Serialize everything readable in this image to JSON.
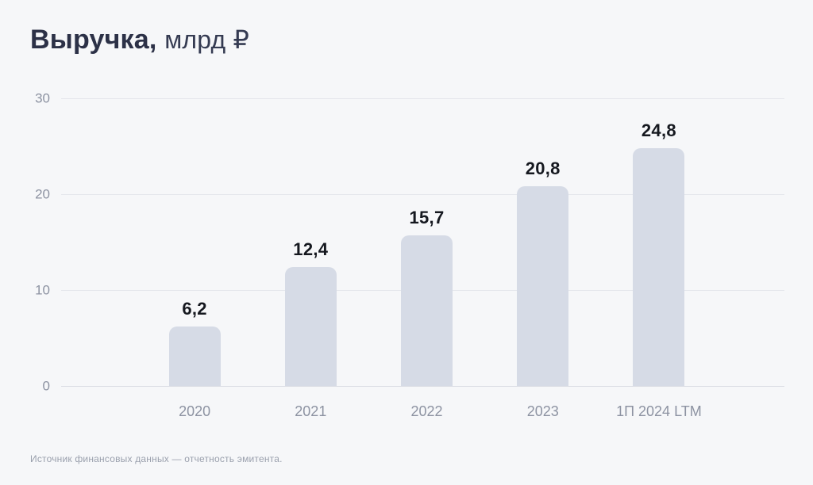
{
  "title": {
    "bold": "Выручка,",
    "unit": "млрд ₽"
  },
  "footer": {
    "source": "Источник финансовых данных — отчетность эмитента."
  },
  "chart_data": {
    "type": "bar",
    "title": "Выручка, млрд ₽",
    "categories": [
      "2020",
      "2021",
      "2022",
      "2023",
      "1П 2024 LTM"
    ],
    "values": [
      6.2,
      12.4,
      15.7,
      20.8,
      24.8
    ],
    "value_labels": [
      "6,2",
      "12,4",
      "15,7",
      "20,8",
      "24,8"
    ],
    "xlabel": "",
    "ylabel": "",
    "ylim": [
      0,
      30
    ],
    "yticks": [
      0,
      10,
      20,
      30
    ],
    "grid": true,
    "legend": false
  },
  "colors": {
    "background": "#f6f7f9",
    "bar": "#d6dbe6",
    "title": "#2c3147",
    "value_label": "#15181f",
    "axis_label": "#8d93a2",
    "gridline": "#e5e7ec",
    "zero_line": "#dadce3",
    "footer": "#9aa0ad"
  }
}
